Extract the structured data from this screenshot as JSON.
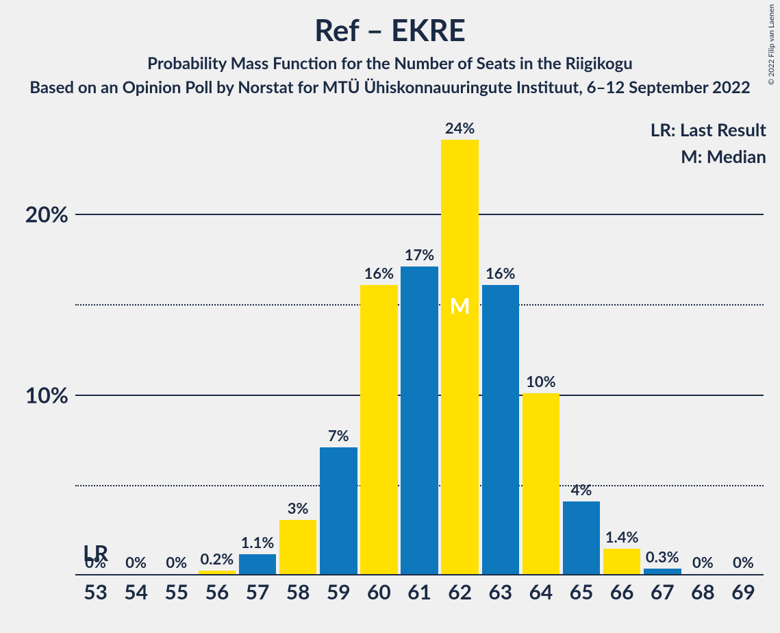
{
  "title": "Ref – EKRE",
  "subtitle": "Probability Mass Function for the Number of Seats in the Riigikogu",
  "source": "Based on an Opinion Poll by Norstat for MTÜ Ühiskonnauuringute Instituut, 6–12 September 2022",
  "legend": {
    "lr": "LR: Last Result",
    "m": "M: Median"
  },
  "copyright": "© 2022 Filip van Laenen",
  "chart": {
    "type": "bar",
    "ylim_max": 25,
    "yticks_major": [
      10,
      20
    ],
    "yticks_minor": [
      5,
      15
    ],
    "ytick_labels": {
      "10": "10%",
      "20": "20%"
    },
    "colors": {
      "blue": "#0f78bd",
      "yellow": "#ffe000",
      "text": "#1a2a44",
      "bg": "#f0f0f0"
    },
    "bars": [
      {
        "x": "53",
        "value": 0,
        "label": "0%",
        "color": "blue",
        "lr": true
      },
      {
        "x": "54",
        "value": 0,
        "label": "0%",
        "color": "yellow"
      },
      {
        "x": "55",
        "value": 0,
        "label": "0%",
        "color": "blue"
      },
      {
        "x": "56",
        "value": 0.2,
        "label": "0.2%",
        "color": "yellow"
      },
      {
        "x": "57",
        "value": 1.1,
        "label": "1.1%",
        "color": "blue"
      },
      {
        "x": "58",
        "value": 3,
        "label": "3%",
        "color": "yellow"
      },
      {
        "x": "59",
        "value": 7,
        "label": "7%",
        "color": "blue"
      },
      {
        "x": "60",
        "value": 16,
        "label": "16%",
        "color": "yellow"
      },
      {
        "x": "61",
        "value": 17,
        "label": "17%",
        "color": "blue"
      },
      {
        "x": "62",
        "value": 24,
        "label": "24%",
        "color": "yellow",
        "median": true
      },
      {
        "x": "63",
        "value": 16,
        "label": "16%",
        "color": "blue"
      },
      {
        "x": "64",
        "value": 10,
        "label": "10%",
        "color": "yellow"
      },
      {
        "x": "65",
        "value": 4,
        "label": "4%",
        "color": "blue"
      },
      {
        "x": "66",
        "value": 1.4,
        "label": "1.4%",
        "color": "yellow"
      },
      {
        "x": "67",
        "value": 0.3,
        "label": "0.3%",
        "color": "blue"
      },
      {
        "x": "68",
        "value": 0,
        "label": "0%",
        "color": "yellow"
      },
      {
        "x": "69",
        "value": 0,
        "label": "0%",
        "color": "blue"
      }
    ],
    "median_symbol": "M",
    "lr_symbol": "LR"
  }
}
